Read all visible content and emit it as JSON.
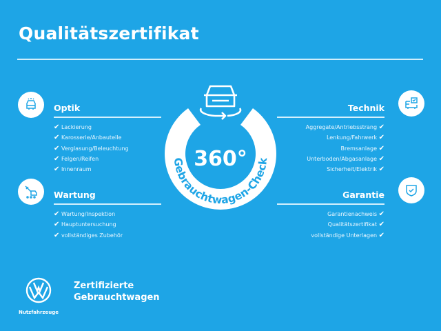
{
  "title": "Qualitätszertifikat",
  "center": {
    "big": "360°",
    "arc_text": "Gebrauchtwagen-Check",
    "icon": "car-rotate-icon"
  },
  "check_mark": "✔",
  "sections": {
    "optik": {
      "title": "Optik",
      "icon": "car-front-icon",
      "items": [
        "Lackierung",
        "Karosserie/Anbauteile",
        "Verglasung/Beleuchtung",
        "Felgen/Reifen",
        "Innenraum"
      ]
    },
    "wartung": {
      "title": "Wartung",
      "icon": "wrench-car-icon",
      "items": [
        "Wartung/Inspektion",
        "Hauptuntersuchung",
        "vollständiges Zubehör"
      ]
    },
    "technik": {
      "title": "Technik",
      "icon": "checklist-car-icon",
      "items": [
        "Aggregate/Antriebsstrang",
        "Lenkung/Fahrwerk",
        "Bremsanlage",
        "Unterboden/Abgasanlage",
        "Sicherheit/Elektrik"
      ]
    },
    "garantie": {
      "title": "Garantie",
      "icon": "shield-check-icon",
      "items": [
        "Garantienachweis",
        "Qualitätszertifikat",
        "vollständige Unterlagen"
      ]
    }
  },
  "footer": {
    "logo_caption": "Nutzfahrzeuge",
    "line1": "Zertifizierte",
    "line2": "Gebrauchtwagen"
  },
  "colors": {
    "background": "#1ea5e6",
    "foreground": "#ffffff"
  }
}
